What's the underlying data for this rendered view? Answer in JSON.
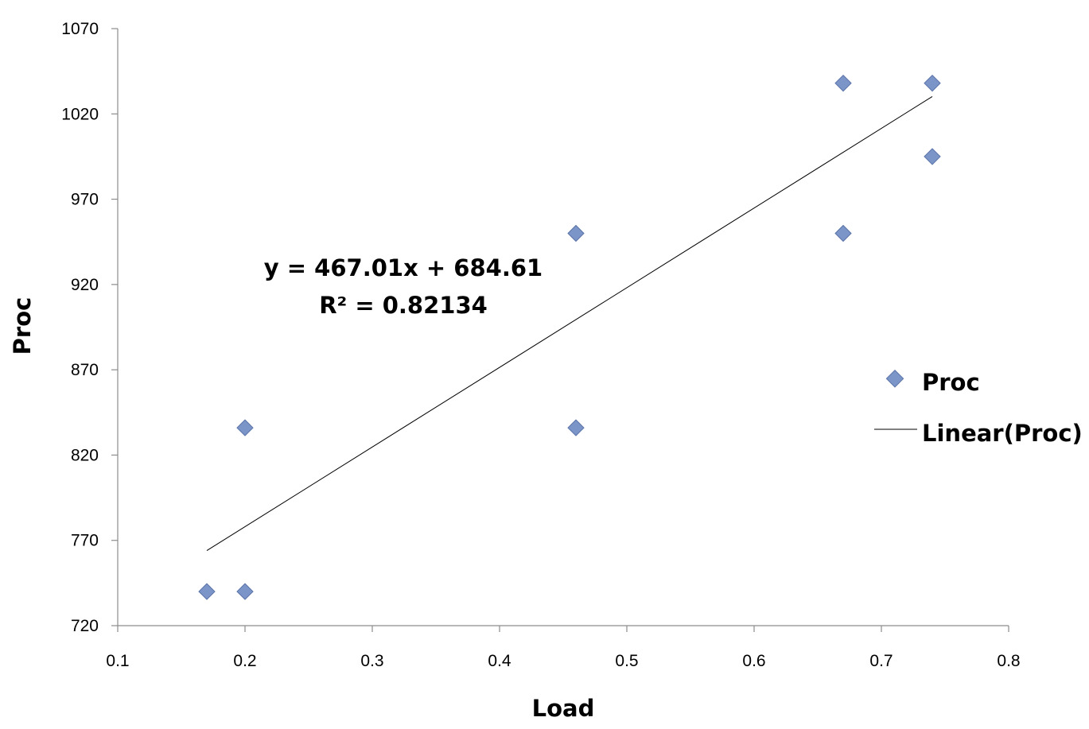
{
  "chart_data": {
    "type": "scatter",
    "title": "",
    "xlabel": "Load",
    "ylabel": "Proc",
    "xlim": [
      0.1,
      0.8
    ],
    "ylim": [
      720,
      1070
    ],
    "x_ticks": [
      0.1,
      0.2,
      0.3,
      0.4,
      0.5,
      0.6,
      0.7,
      0.8
    ],
    "x_tick_labels": [
      "0.1",
      "0.2",
      "0.3",
      "0.4",
      "0.5",
      "0.6",
      "0.7",
      "0.8"
    ],
    "y_ticks": [
      720,
      770,
      820,
      870,
      920,
      970,
      1020,
      1070
    ],
    "y_tick_labels": [
      "720",
      "770",
      "820",
      "870",
      "920",
      "970",
      "1020",
      "1070"
    ],
    "grid": false,
    "series": [
      {
        "name": "Proc",
        "marker": "diamond",
        "color": "#7b95c9",
        "points": [
          {
            "x": 0.17,
            "y": 740
          },
          {
            "x": 0.2,
            "y": 740
          },
          {
            "x": 0.2,
            "y": 836
          },
          {
            "x": 0.46,
            "y": 836
          },
          {
            "x": 0.46,
            "y": 950
          },
          {
            "x": 0.67,
            "y": 950
          },
          {
            "x": 0.67,
            "y": 1038
          },
          {
            "x": 0.74,
            "y": 1038
          },
          {
            "x": 0.74,
            "y": 995
          }
        ]
      }
    ],
    "trendline": {
      "name": "Linear(Proc)",
      "type": "linear",
      "slope": 467.01,
      "intercept": 684.61,
      "x_range": [
        0.17,
        0.74
      ],
      "color": "#000000"
    },
    "annotations": {
      "equation": "y = 467.01x + 684.61",
      "r_squared": "R² = 0.82134"
    },
    "legend": {
      "placement": "right",
      "entries": [
        "Proc",
        "Linear(Proc)"
      ]
    }
  }
}
